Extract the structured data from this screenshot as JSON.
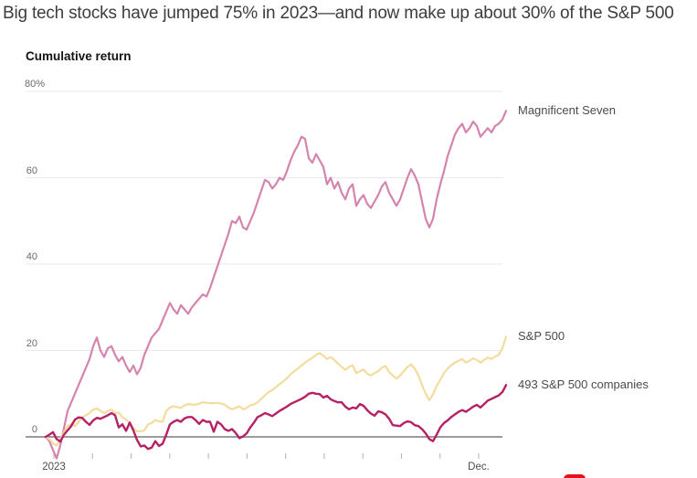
{
  "headline": "Big tech stocks have jumped 75% in 2023—and now make up about 30% of the S&P 500",
  "chart": {
    "axis_title": "Cumulative return",
    "y_ticks": [
      {
        "value": 80,
        "label": "80%"
      },
      {
        "value": 60,
        "label": "60"
      },
      {
        "value": 40,
        "label": "40"
      },
      {
        "value": 20,
        "label": "20"
      },
      {
        "value": 0,
        "label": "0"
      }
    ],
    "x_tick_count": 12,
    "x_labels": [
      {
        "label": "2023",
        "tick_index": 0
      },
      {
        "label": "Dec.",
        "tick_index": 11
      }
    ]
  },
  "chart_data": {
    "type": "line",
    "title": "Cumulative return",
    "unit": "% cumulative return",
    "x_range": "2023 (January through December, daily prices)",
    "ylim": [
      -6,
      80
    ],
    "y_gridlines": [
      0,
      20,
      40,
      60,
      80
    ],
    "grid": true,
    "legend_position": "right, at line ends",
    "series": [
      {
        "name": "Magnificent Seven",
        "color": "#d584ad",
        "stroke_width": 2.2,
        "end_value": 75.5,
        "values": [
          0,
          -1,
          -3,
          -5,
          -2,
          2,
          6,
          8,
          10,
          12,
          14,
          16,
          18,
          21,
          23,
          20,
          18.5,
          20.5,
          21,
          19,
          17.5,
          18.5,
          16.5,
          15,
          16.5,
          14.5,
          16,
          19,
          21,
          23,
          24,
          25,
          27,
          29,
          31,
          29.5,
          28.5,
          30.5,
          29.5,
          28.5,
          30,
          31,
          32,
          33,
          32.5,
          34.5,
          37,
          39.5,
          42,
          44.5,
          47,
          50,
          49.5,
          51,
          48.5,
          48,
          50,
          52,
          54.5,
          57,
          59.5,
          59,
          57.5,
          58.5,
          60,
          59.5,
          61.5,
          64,
          66,
          67.5,
          69.5,
          69,
          64.5,
          63.5,
          65.5,
          64,
          62.5,
          58.5,
          60,
          57.5,
          59,
          56.5,
          55,
          57.5,
          58.5,
          53.5,
          55,
          56,
          54,
          53,
          54.5,
          56,
          58,
          59,
          56.5,
          55,
          53.5,
          55,
          57.5,
          60,
          62,
          60.5,
          58.5,
          54.5,
          50.5,
          48.5,
          50.5,
          55,
          58.5,
          61.5,
          65,
          67.5,
          70,
          71.5,
          72.5,
          70.5,
          71.5,
          73,
          72,
          69.5,
          70.5,
          71.5,
          70.5,
          72,
          72.5,
          73.5,
          75.5
        ]
      },
      {
        "name": "S&P 500",
        "color": "#f3dc9e",
        "stroke_width": 2.2,
        "end_value": 23.2,
        "values": [
          0,
          -0.5,
          -1.5,
          -2,
          -0.5,
          1,
          2.5,
          3,
          2.5,
          3.5,
          4.5,
          5,
          5.5,
          6.3,
          6.6,
          6,
          5.5,
          6,
          6.3,
          5.5,
          5.6,
          4.5,
          4,
          3.3,
          2,
          1.3,
          1.3,
          1.5,
          2.9,
          3.2,
          3.9,
          3.6,
          3.5,
          6,
          6.8,
          7.1,
          6.9,
          6.7,
          7.3,
          7.6,
          7.5,
          7.4,
          7.7,
          8,
          7.9,
          7.8,
          7.8,
          7.9,
          7.7,
          7.5,
          6.8,
          6.4,
          6.7,
          7.1,
          6.4,
          6.7,
          7.3,
          7.5,
          8,
          8.8,
          9.6,
          10.4,
          10.8,
          11.5,
          12.2,
          12.8,
          13.6,
          14.5,
          15.2,
          15.8,
          16.5,
          17.2,
          17.8,
          18.3,
          19,
          19.4,
          18.8,
          18,
          18.5,
          17.8,
          17,
          16.2,
          15.5,
          16.2,
          16.6,
          14.8,
          15.2,
          15.6,
          14.6,
          14.2,
          14.8,
          15.2,
          16,
          16.4,
          15,
          14.2,
          13.5,
          14.2,
          15.2,
          16.2,
          16.8,
          15.8,
          14.2,
          12,
          10,
          8.5,
          9.8,
          11.8,
          13.2,
          14.8,
          15.8,
          16.6,
          17.2,
          17.6,
          18,
          17.2,
          17.6,
          18.2,
          17.8,
          17.2,
          17.8,
          18.4,
          18,
          18.6,
          19,
          20.5,
          23.2
        ]
      },
      {
        "name": "493 S&P 500 companies",
        "color": "#b62065",
        "stroke_width": 2.4,
        "end_value": 12,
        "values": [
          0,
          0.5,
          1.1,
          -0.5,
          -1.1,
          0.5,
          1.5,
          2.5,
          4,
          4.5,
          4.4,
          3.5,
          2.8,
          3.8,
          4.4,
          4.2,
          4.6,
          5,
          5.5,
          5,
          2.2,
          2.9,
          1.4,
          3.3,
          1.5,
          -0.7,
          -2.2,
          -2,
          -2.8,
          -2.5,
          -1,
          -2.1,
          -1.6,
          0.5,
          2.9,
          3.5,
          3.9,
          3.5,
          4.3,
          4.6,
          4.6,
          3.9,
          3,
          3.9,
          3.5,
          3.5,
          1.2,
          3.5,
          2.9,
          1.8,
          1.4,
          1.8,
          0.9,
          -0.3,
          0.1,
          0.8,
          2.2,
          3.3,
          4.6,
          5,
          5.5,
          5.2,
          4.8,
          5.4,
          6,
          6.5,
          7,
          7.6,
          8,
          8.4,
          8.8,
          9.3,
          10,
          10.2,
          10,
          9.9,
          9.1,
          9.5,
          8.7,
          8.3,
          8,
          8,
          7,
          6.4,
          6.8,
          6.6,
          7.6,
          7.2,
          6.2,
          5.4,
          4.9,
          5.9,
          5.7,
          5.2,
          4.2,
          2.7,
          2.6,
          2.5,
          3.2,
          3.6,
          3.4,
          2.7,
          2.5,
          1.8,
          0.8,
          -0.5,
          -1,
          0.5,
          2.2,
          3.2,
          3.8,
          4.6,
          5.2,
          5.8,
          6.2,
          5.8,
          6.4,
          7,
          7.4,
          6.8,
          7.6,
          8.4,
          8.8,
          9.2,
          9.6,
          10.4,
          12
        ]
      }
    ]
  },
  "colors": {
    "gridline": "#eaeaea",
    "zero_axis": "#9c9c9c",
    "tick": "#b0b0b0",
    "headline_text": "#3d3d3d",
    "axis_label_text": "#6b6b6b",
    "legend_text": "#4b4b4b",
    "red_element": "#e0151b"
  }
}
